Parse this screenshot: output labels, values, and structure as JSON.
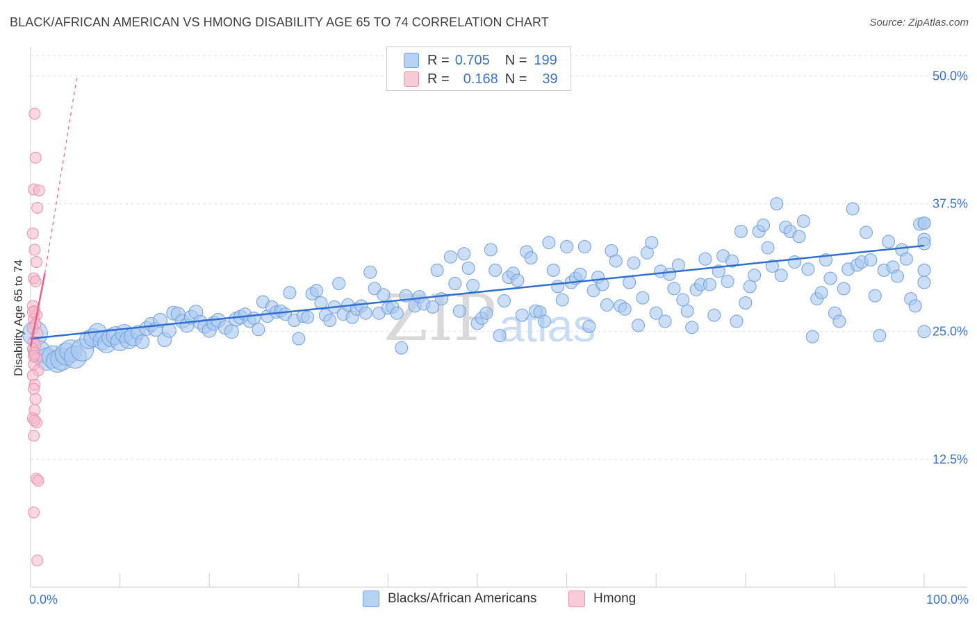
{
  "header": {
    "title": "BLACK/AFRICAN AMERICAN VS HMONG DISABILITY AGE 65 TO 74 CORRELATION CHART",
    "source": "Source: ZipAtlas.com"
  },
  "legend": {
    "row1": {
      "r_label": "R =",
      "r_value": "0.705",
      "n_label": "N =",
      "n_value": "199"
    },
    "row2": {
      "r_label": "R =",
      "r_value": "0.168",
      "n_label": "N =",
      "n_value": "39"
    }
  },
  "bottom_legend": {
    "series1": "Blacks/African Americans",
    "series2": "Hmong"
  },
  "colors": {
    "blue_fill": "#a9c8f0",
    "blue_stroke": "#6e9fdc",
    "blue_line": "#2f6fd0",
    "pink_fill": "#f6b8cb",
    "pink_stroke": "#e890ac",
    "pink_line": "#e8628e",
    "axis_label": "#3a73c8",
    "grid": "#dddddd"
  },
  "watermark": {
    "zip": "ZIP",
    "atlas": "atlas"
  },
  "chart_data": {
    "type": "scatter",
    "title": "BLACK/AFRICAN AMERICAN VS HMONG DISABILITY AGE 65 TO 74 CORRELATION CHART",
    "xlabel": "",
    "ylabel": "Disability Age 65 to 74",
    "xlim": [
      0,
      100
    ],
    "ylim": [
      0,
      52
    ],
    "x_tick_labels": [
      "0.0%",
      "100.0%"
    ],
    "y_ticks": [
      12.5,
      25.0,
      37.5,
      50.0
    ],
    "y_tick_labels": [
      "12.5%",
      "25.0%",
      "37.5%",
      "50.0%"
    ],
    "grid": "horizontal dashed",
    "series": [
      {
        "name": "Blacks/African Americans",
        "color": "#a9c8f0",
        "trend": {
          "x": [
            0,
            100
          ],
          "y": [
            24.3,
            33.4
          ],
          "style": "solid"
        },
        "points": [
          [
            0.5,
            24.8
          ],
          [
            1,
            23
          ],
          [
            1.8,
            22.3
          ],
          [
            2.5,
            22.5
          ],
          [
            3,
            22.1
          ],
          [
            3.5,
            22.3
          ],
          [
            4,
            22.8
          ],
          [
            4.5,
            23.1
          ],
          [
            5,
            22.5
          ],
          [
            5.8,
            23.2
          ],
          [
            6.5,
            24.2
          ],
          [
            7,
            24.4
          ],
          [
            7.5,
            24.9
          ],
          [
            8,
            24.1
          ],
          [
            8.5,
            23.8
          ],
          [
            9,
            24.4
          ],
          [
            9.5,
            24.6
          ],
          [
            10,
            24.0
          ],
          [
            10.5,
            24.8
          ],
          [
            11,
            24.2
          ],
          [
            11.5,
            24.5
          ],
          [
            12,
            24.9
          ],
          [
            12.5,
            24.0
          ],
          [
            13,
            25.3
          ],
          [
            13.5,
            25.7
          ],
          [
            14,
            25.2
          ],
          [
            14.5,
            26.1
          ],
          [
            15,
            24.2
          ],
          [
            15.5,
            25.1
          ],
          [
            16,
            26.8
          ],
          [
            16.5,
            26.7
          ],
          [
            17,
            26.0
          ],
          [
            17.5,
            25.6
          ],
          [
            18,
            26.4
          ],
          [
            18.5,
            26.9
          ],
          [
            19,
            25.9
          ],
          [
            19.5,
            25.5
          ],
          [
            20,
            25.1
          ],
          [
            20.5,
            25.8
          ],
          [
            21,
            26.1
          ],
          [
            21.8,
            25.4
          ],
          [
            22.5,
            25.0
          ],
          [
            23,
            26.2
          ],
          [
            23.5,
            26.4
          ],
          [
            24,
            26.7
          ],
          [
            24.5,
            26.0
          ],
          [
            25,
            26.3
          ],
          [
            25.5,
            25.2
          ],
          [
            26,
            27.9
          ],
          [
            26.5,
            26.5
          ],
          [
            27,
            27.4
          ],
          [
            27.5,
            26.9
          ],
          [
            28,
            27.0
          ],
          [
            28.5,
            26.7
          ],
          [
            29,
            28.8
          ],
          [
            29.5,
            26.1
          ],
          [
            30,
            24.3
          ],
          [
            30.5,
            26.5
          ],
          [
            31,
            26.4
          ],
          [
            31.5,
            28.7
          ],
          [
            32,
            29.0
          ],
          [
            32.5,
            27.8
          ],
          [
            33,
            26.6
          ],
          [
            33.5,
            26.1
          ],
          [
            34,
            27.4
          ],
          [
            34.5,
            29.7
          ],
          [
            35,
            26.7
          ],
          [
            35.5,
            27.6
          ],
          [
            36,
            26.4
          ],
          [
            36.5,
            27.2
          ],
          [
            37,
            27.5
          ],
          [
            37.5,
            26.8
          ],
          [
            38,
            30.8
          ],
          [
            38.5,
            29.2
          ],
          [
            39,
            26.8
          ],
          [
            39.5,
            28.6
          ],
          [
            40,
            27.3
          ],
          [
            40.5,
            27.4
          ],
          [
            41,
            26.8
          ],
          [
            41.5,
            23.4
          ],
          [
            42,
            28.5
          ],
          [
            43,
            27.5
          ],
          [
            43.5,
            28.4
          ],
          [
            44,
            27.7
          ],
          [
            45,
            27.4
          ],
          [
            45.5,
            31.0
          ],
          [
            46,
            28.2
          ],
          [
            47,
            32.3
          ],
          [
            47.5,
            29.7
          ],
          [
            48,
            27.0
          ],
          [
            48.5,
            32.6
          ],
          [
            49,
            31.2
          ],
          [
            49.5,
            29.5
          ],
          [
            50,
            25.8
          ],
          [
            50.5,
            26.3
          ],
          [
            51,
            26.8
          ],
          [
            51.5,
            33.0
          ],
          [
            52,
            31.0
          ],
          [
            52.5,
            24.6
          ],
          [
            53,
            28.0
          ],
          [
            53.5,
            30.3
          ],
          [
            54,
            30.7
          ],
          [
            54.5,
            30.0
          ],
          [
            55,
            26.6
          ],
          [
            55.5,
            32.8
          ],
          [
            56,
            32.2
          ],
          [
            56.5,
            27.0
          ],
          [
            57,
            26.9
          ],
          [
            57.5,
            26.0
          ],
          [
            58,
            33.7
          ],
          [
            58.5,
            31.0
          ],
          [
            59,
            29.4
          ],
          [
            59.5,
            28.1
          ],
          [
            60,
            33.3
          ],
          [
            60.5,
            29.8
          ],
          [
            61,
            30.2
          ],
          [
            61.5,
            30.6
          ],
          [
            62,
            33.3
          ],
          [
            62.5,
            25.5
          ],
          [
            63,
            29.0
          ],
          [
            63.5,
            30.3
          ],
          [
            64,
            29.6
          ],
          [
            64.5,
            27.6
          ],
          [
            65,
            32.9
          ],
          [
            65.5,
            31.9
          ],
          [
            66,
            27.5
          ],
          [
            66.5,
            27.2
          ],
          [
            67,
            29.8
          ],
          [
            67.5,
            31.7
          ],
          [
            68,
            25.6
          ],
          [
            68.5,
            28.3
          ],
          [
            69,
            32.7
          ],
          [
            69.5,
            33.7
          ],
          [
            70,
            26.8
          ],
          [
            70.5,
            30.9
          ],
          [
            71,
            26.0
          ],
          [
            71.5,
            30.6
          ],
          [
            72,
            29.2
          ],
          [
            72.5,
            31.5
          ],
          [
            73,
            28.1
          ],
          [
            73.5,
            27.0
          ],
          [
            74,
            25.4
          ],
          [
            74.5,
            29.1
          ],
          [
            75,
            29.6
          ],
          [
            75.5,
            32.1
          ],
          [
            76,
            29.6
          ],
          [
            76.5,
            26.6
          ],
          [
            77,
            30.9
          ],
          [
            77.5,
            32.4
          ],
          [
            78,
            29.9
          ],
          [
            78.5,
            31.9
          ],
          [
            79,
            26.0
          ],
          [
            79.5,
            34.8
          ],
          [
            80,
            27.8
          ],
          [
            80.5,
            29.4
          ],
          [
            81,
            30.5
          ],
          [
            81.5,
            34.8
          ],
          [
            82,
            35.4
          ],
          [
            82.5,
            33.2
          ],
          [
            83,
            31.4
          ],
          [
            83.5,
            37.5
          ],
          [
            84,
            30.5
          ],
          [
            84.5,
            35.2
          ],
          [
            85,
            34.8
          ],
          [
            85.5,
            31.8
          ],
          [
            86,
            34.3
          ],
          [
            86.5,
            35.8
          ],
          [
            87,
            31.1
          ],
          [
            87.5,
            24.5
          ],
          [
            88,
            28.2
          ],
          [
            88.5,
            28.8
          ],
          [
            89,
            32.0
          ],
          [
            89.5,
            30.2
          ],
          [
            90,
            26.8
          ],
          [
            90.5,
            26.0
          ],
          [
            91,
            29.2
          ],
          [
            91.5,
            31.1
          ],
          [
            92,
            37.0
          ],
          [
            92.5,
            31.5
          ],
          [
            93,
            31.8
          ],
          [
            93.5,
            34.7
          ],
          [
            94,
            32.0
          ],
          [
            94.5,
            28.5
          ],
          [
            95,
            24.6
          ],
          [
            95.5,
            31.0
          ],
          [
            96,
            33.8
          ],
          [
            96.5,
            31.3
          ],
          [
            97,
            30.4
          ],
          [
            97.5,
            33.0
          ],
          [
            98,
            32.1
          ],
          [
            98.5,
            28.2
          ],
          [
            99,
            27.5
          ],
          [
            99.5,
            35.5
          ],
          [
            100,
            34.0
          ],
          [
            100.5,
            31.0
          ],
          [
            101,
            29.8
          ],
          [
            101.5,
            25.0
          ],
          [
            102,
            35.6
          ],
          [
            102.5,
            35.6
          ],
          [
            103,
            33.6
          ]
        ]
      },
      {
        "name": "Hmong",
        "color": "#f6b8cb",
        "trend": {
          "x": [
            0,
            1.6
          ],
          "y": [
            23.5,
            30.7
          ],
          "style": "solid then dashed",
          "dashed_to": [
            5.2,
            50.0
          ]
        },
        "points": [
          [
            0.3,
            46.3
          ],
          [
            0.4,
            42.0
          ],
          [
            0.2,
            38.9
          ],
          [
            0.8,
            38.8
          ],
          [
            0.6,
            37.1
          ],
          [
            0.1,
            34.6
          ],
          [
            0.3,
            33.0
          ],
          [
            0.5,
            31.8
          ],
          [
            0.2,
            30.2
          ],
          [
            0.4,
            29.9
          ],
          [
            0.1,
            27.5
          ],
          [
            0.3,
            27.0
          ],
          [
            0.5,
            26.6
          ],
          [
            0.2,
            26.2
          ],
          [
            0.4,
            25.7
          ],
          [
            0.1,
            25.3
          ],
          [
            0.6,
            24.8
          ],
          [
            0.2,
            24.0
          ],
          [
            0.4,
            23.7
          ],
          [
            0.1,
            23.3
          ],
          [
            0.3,
            22.9
          ],
          [
            0.5,
            22.4
          ],
          [
            0.2,
            21.8
          ],
          [
            0.7,
            21.2
          ],
          [
            0.1,
            20.7
          ],
          [
            0.3,
            19.8
          ],
          [
            0.2,
            19.4
          ],
          [
            0.4,
            18.4
          ],
          [
            0.3,
            17.3
          ],
          [
            0.1,
            16.5
          ],
          [
            0.5,
            16.1
          ],
          [
            0.3,
            16.3
          ],
          [
            0.2,
            14.8
          ],
          [
            0.5,
            10.6
          ],
          [
            0.7,
            10.4
          ],
          [
            0.2,
            7.3
          ],
          [
            0.6,
            2.6
          ],
          [
            0.1,
            26.9
          ],
          [
            0.2,
            22.6
          ]
        ]
      }
    ]
  }
}
